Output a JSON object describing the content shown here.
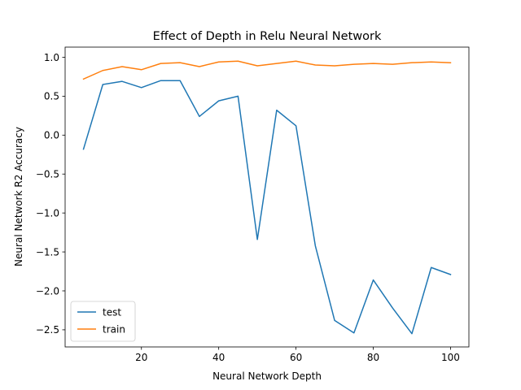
{
  "chart_data": {
    "type": "line",
    "title": "Effect of Depth in Relu  Neural Network",
    "xlabel": "Neural Network Depth",
    "ylabel": "Neural Network R2 Accuracy",
    "xlim": [
      0.25,
      104.75
    ],
    "ylim": [
      -2.72,
      1.13
    ],
    "xticks": [
      20,
      40,
      60,
      80,
      100
    ],
    "xtick_labels": [
      "20",
      "40",
      "60",
      "80",
      "100"
    ],
    "yticks": [
      -2.5,
      -2.0,
      -1.5,
      -1.0,
      -0.5,
      0.0,
      0.5,
      1.0
    ],
    "ytick_labels": [
      "−2.5",
      "−2.0",
      "−1.5",
      "−1.0",
      "−0.5",
      "0.0",
      "0.5",
      "1.0"
    ],
    "grid": false,
    "legend_position": "lower-left",
    "x": [
      5,
      10,
      15,
      20,
      25,
      30,
      35,
      40,
      45,
      50,
      55,
      60,
      65,
      70,
      75,
      80,
      85,
      90,
      95,
      100
    ],
    "series": [
      {
        "name": "test",
        "color": "#1f77b4",
        "values": [
          -0.18,
          0.65,
          0.69,
          0.61,
          0.7,
          0.7,
          0.24,
          0.44,
          0.5,
          -1.34,
          0.32,
          0.12,
          -1.42,
          -2.38,
          -2.54,
          -1.86,
          -2.22,
          -2.55,
          -1.7,
          -1.79
        ]
      },
      {
        "name": "train",
        "color": "#ff7f0e",
        "values": [
          0.72,
          0.83,
          0.88,
          0.84,
          0.92,
          0.93,
          0.88,
          0.94,
          0.95,
          0.89,
          0.92,
          0.95,
          0.9,
          0.89,
          0.91,
          0.92,
          0.91,
          0.93,
          0.94,
          0.93
        ]
      }
    ]
  }
}
